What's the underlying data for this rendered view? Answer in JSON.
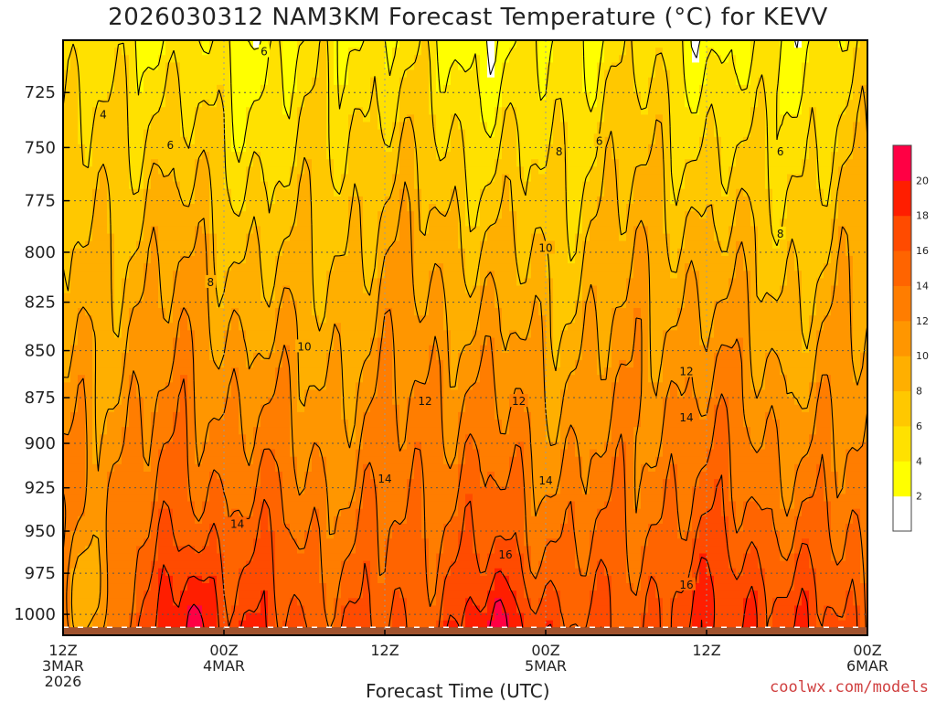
{
  "chart_data": {
    "type": "heatmap",
    "title": "2026030312 NAM3KM Forecast Temperature (°C) for KEVV",
    "xlabel": "Forecast Time (UTC)",
    "ylabel": "",
    "x_ticks": [
      {
        "hours": 0,
        "lines": [
          "12Z",
          "3MAR",
          "2026"
        ]
      },
      {
        "hours": 12,
        "lines": [
          "00Z",
          "4MAR"
        ]
      },
      {
        "hours": 24,
        "lines": [
          "12Z"
        ]
      },
      {
        "hours": 36,
        "lines": [
          "00Z",
          "5MAR"
        ]
      },
      {
        "hours": 48,
        "lines": [
          "12Z"
        ]
      },
      {
        "hours": 60,
        "lines": [
          "00Z",
          "6MAR"
        ]
      }
    ],
    "xlim_hours": [
      0,
      60
    ],
    "y_ticks": [
      725,
      750,
      775,
      800,
      825,
      850,
      875,
      900,
      925,
      950,
      975,
      1000
    ],
    "ylim_hPa": [
      1013,
      702
    ],
    "y_scale": "log-pressure (inverted)",
    "grid": true,
    "colorbar": {
      "ticks": [
        2,
        4,
        6,
        8,
        10,
        12,
        14,
        16,
        18,
        20
      ],
      "levels": [
        0,
        2,
        4,
        6,
        8,
        10,
        12,
        14,
        16,
        18,
        20,
        22
      ],
      "colors": [
        "#ffffff",
        "#ffff00",
        "#ffe100",
        "#ffc800",
        "#ffaf00",
        "#ff9600",
        "#ff7d00",
        "#ff6400",
        "#ff4b00",
        "#ff1e00",
        "#ff0044"
      ]
    },
    "contour_labels": [
      {
        "text": "4",
        "hours": 3.0,
        "hPa": 735
      },
      {
        "text": "6",
        "hours": 15.0,
        "hPa": 707
      },
      {
        "text": "6",
        "hours": 8.0,
        "hPa": 749
      },
      {
        "text": "6",
        "hours": 40.0,
        "hPa": 747
      },
      {
        "text": "6",
        "hours": 53.5,
        "hPa": 752
      },
      {
        "text": "8",
        "hours": 11.0,
        "hPa": 815
      },
      {
        "text": "8",
        "hours": 37.0,
        "hPa": 752
      },
      {
        "text": "8",
        "hours": 53.5,
        "hPa": 791
      },
      {
        "text": "10",
        "hours": 18.0,
        "hPa": 848
      },
      {
        "text": "10",
        "hours": 36.0,
        "hPa": 798
      },
      {
        "text": "12",
        "hours": 27.0,
        "hPa": 877
      },
      {
        "text": "12",
        "hours": 34.0,
        "hPa": 877
      },
      {
        "text": "12",
        "hours": 46.5,
        "hPa": 861
      },
      {
        "text": "14",
        "hours": 13.0,
        "hPa": 946
      },
      {
        "text": "14",
        "hours": 24.0,
        "hPa": 920
      },
      {
        "text": "14",
        "hours": 36.0,
        "hPa": 921
      },
      {
        "text": "14",
        "hours": 46.5,
        "hPa": 886
      },
      {
        "text": "16",
        "hours": 33.0,
        "hPa": 964
      },
      {
        "text": "16",
        "hours": 46.5,
        "hPa": 982
      }
    ],
    "ground_color": "#a0522d"
  },
  "credit": "coolwx.com/models"
}
